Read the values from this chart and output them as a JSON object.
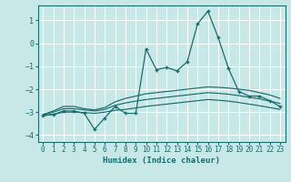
{
  "xlabel": "Humidex (Indice chaleur)",
  "background_color": "#c8e8e8",
  "grid_color": "#ffffff",
  "line_color": "#1a6b6b",
  "xlim": [
    -0.5,
    23.5
  ],
  "ylim": [
    -4.3,
    1.65
  ],
  "yticks": [
    1,
    0,
    -1,
    -2,
    -3,
    -4
  ],
  "xticks": [
    0,
    1,
    2,
    3,
    4,
    5,
    6,
    7,
    8,
    9,
    10,
    11,
    12,
    13,
    14,
    15,
    16,
    17,
    18,
    19,
    20,
    21,
    22,
    23
  ],
  "main_x": [
    0,
    1,
    2,
    3,
    4,
    5,
    6,
    7,
    8,
    9,
    10,
    11,
    12,
    13,
    14,
    15,
    16,
    17,
    18,
    19,
    20,
    21,
    22,
    23
  ],
  "main_y": [
    -3.15,
    -3.1,
    -2.95,
    -2.95,
    -3.05,
    -3.75,
    -3.25,
    -2.75,
    -3.05,
    -3.05,
    -0.25,
    -1.15,
    -1.05,
    -1.2,
    -0.8,
    0.85,
    1.4,
    0.25,
    -1.1,
    -2.1,
    -2.3,
    -2.3,
    -2.5,
    -2.75
  ],
  "upper_y": [
    -3.1,
    -2.95,
    -2.75,
    -2.75,
    -2.85,
    -2.9,
    -2.8,
    -2.55,
    -2.4,
    -2.3,
    -2.2,
    -2.15,
    -2.1,
    -2.05,
    -2.0,
    -1.95,
    -1.9,
    -1.92,
    -1.95,
    -2.0,
    -2.05,
    -2.15,
    -2.25,
    -2.4
  ],
  "mid_y": [
    -3.12,
    -3.0,
    -2.85,
    -2.85,
    -2.9,
    -2.95,
    -2.88,
    -2.7,
    -2.6,
    -2.52,
    -2.45,
    -2.4,
    -2.35,
    -2.3,
    -2.25,
    -2.2,
    -2.15,
    -2.18,
    -2.22,
    -2.28,
    -2.35,
    -2.42,
    -2.52,
    -2.62
  ],
  "lower_y": [
    -3.15,
    -3.1,
    -3.0,
    -3.0,
    -3.02,
    -3.05,
    -3.0,
    -2.92,
    -2.88,
    -2.82,
    -2.75,
    -2.7,
    -2.65,
    -2.6,
    -2.55,
    -2.5,
    -2.45,
    -2.48,
    -2.52,
    -2.58,
    -2.65,
    -2.72,
    -2.8,
    -2.88
  ]
}
